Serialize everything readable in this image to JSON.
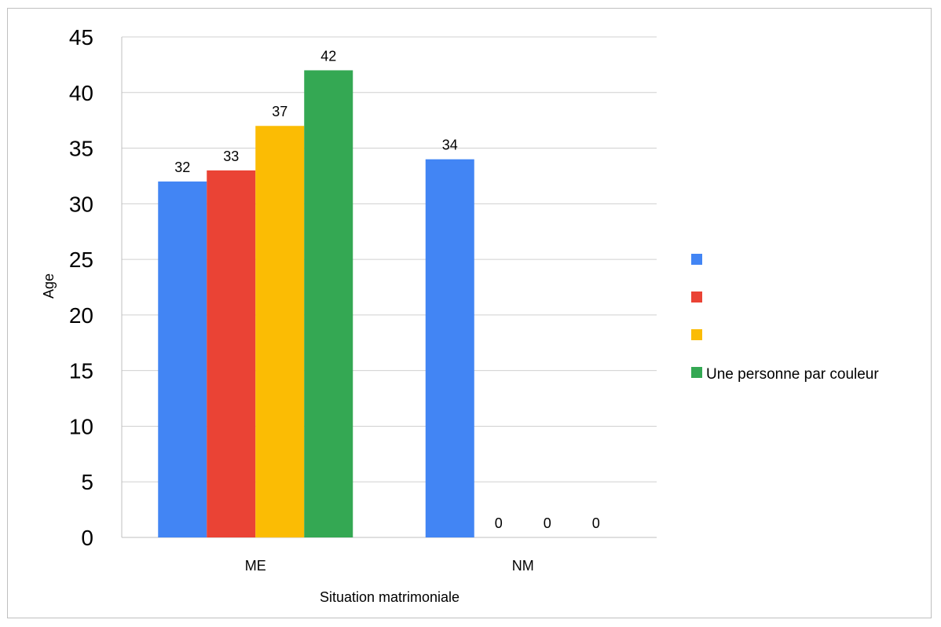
{
  "chart_data": {
    "type": "bar",
    "categories": [
      "ME",
      "NM"
    ],
    "series": [
      {
        "values": [
          32,
          34
        ],
        "color": "#4285F4"
      },
      {
        "values": [
          33,
          0
        ],
        "color": "#EA4335"
      },
      {
        "values": [
          37,
          0
        ],
        "color": "#FBBC04"
      },
      {
        "name": "Une personne par couleur",
        "values": [
          42,
          0
        ],
        "color": "#34A853"
      }
    ],
    "xlabel": "Situation matrimoniale",
    "ylabel": "Age",
    "ylim": [
      0,
      45
    ],
    "yticks": [
      0,
      5,
      10,
      15,
      20,
      25,
      30,
      35,
      40,
      45
    ],
    "grid": true,
    "legend": "right"
  }
}
